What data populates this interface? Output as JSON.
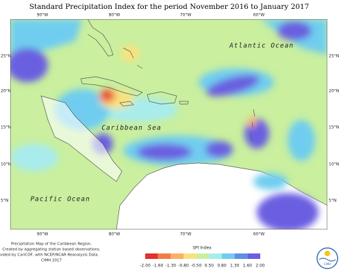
{
  "title": "Standard Precipitation Index for the period November 2016 to January 2017",
  "map": {
    "lon_top": [
      "90°W",
      "80°W",
      "70°W",
      "60°W"
    ],
    "lon_bottom": [
      "90°W",
      "80°W",
      "70°W",
      "60°W"
    ],
    "lat_left": [
      "25°N",
      "20°N",
      "15°N",
      "10°N",
      "5°N"
    ],
    "lat_right": [
      "25°N",
      "20°N",
      "15°N",
      "10°N",
      "5°N"
    ],
    "labels": [
      "Atlantic Ocean",
      "Caribbean Sea",
      "Pacific Ocean"
    ]
  },
  "legend": {
    "title": "SPI Index",
    "ticks": [
      "-2.00",
      "-1.60",
      "-1.30",
      "-0.80",
      "-0.50",
      "0.50",
      "0.80",
      "1.30",
      "1.60",
      "2.00"
    ],
    "colors": [
      "#e0332c",
      "#f47a4a",
      "#fbb066",
      "#f9e27d",
      "#c9ef9f",
      "#a8ecec",
      "#6fcdef",
      "#5f8fe6",
      "#6b5ee0"
    ]
  },
  "footer": [
    "Precipitation Map of the Caribbean Region.",
    "Created by aggregating station based observations.",
    "vided by CariCOF, with NCEP/NCAR Reanalysis Data.",
    "CIMH 2017"
  ],
  "logo": "CIMH"
}
